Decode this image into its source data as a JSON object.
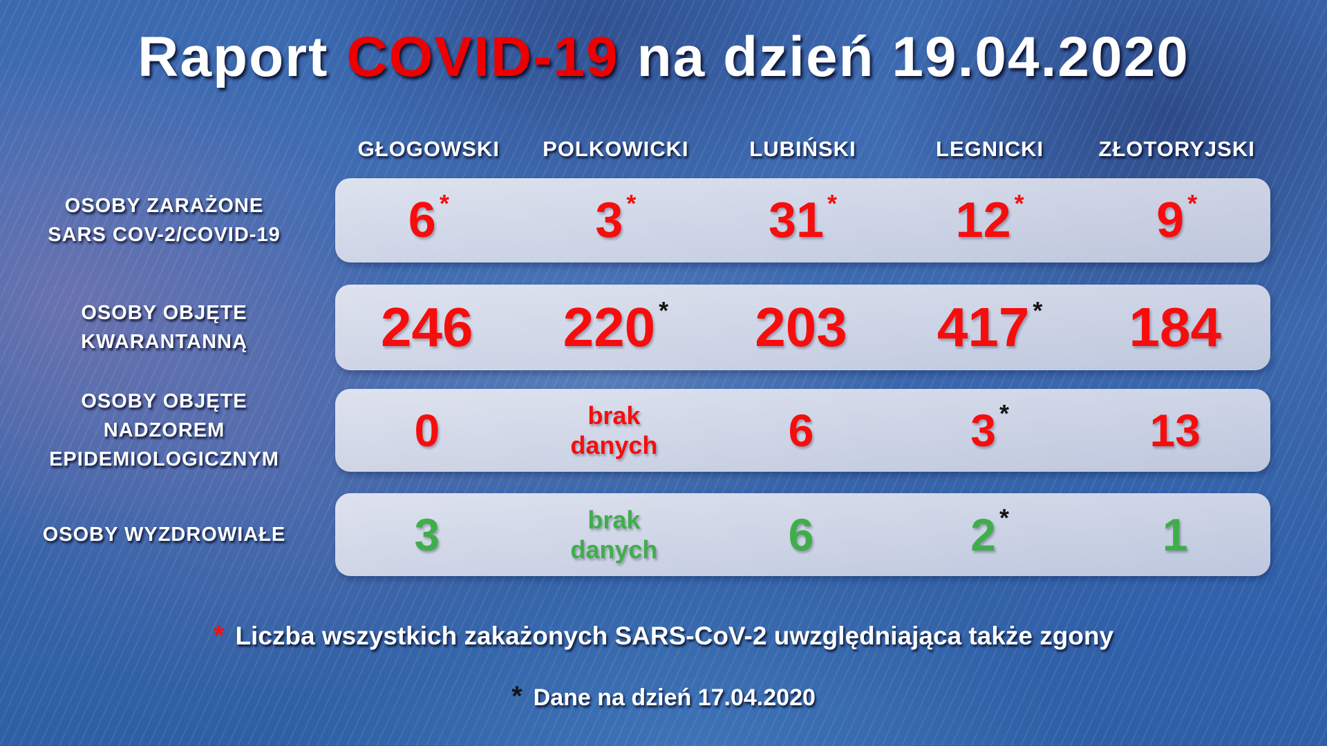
{
  "title": {
    "prefix": "Raport",
    "highlight": "COVID-19",
    "suffix": "na dzień 19.04.2020"
  },
  "columns": [
    "GŁOGOWSKI",
    "POLKOWICKI",
    "LUBIŃSKI",
    "LEGNICKI",
    "ZŁOTORYJSKI"
  ],
  "rows": [
    {
      "label": "OSOBY ZARAŻONE\nSARS COV-2/COVID-19",
      "cells": [
        {
          "value": "6",
          "asterisk": "*"
        },
        {
          "value": "3",
          "asterisk": "*"
        },
        {
          "value": "31",
          "asterisk": "*"
        },
        {
          "value": "12",
          "asterisk": "*"
        },
        {
          "value": "9",
          "asterisk": "*"
        }
      ]
    },
    {
      "label": "OSOBY OBJĘTE\nKWARANTANNĄ",
      "cells": [
        {
          "value": "246",
          "asterisk": ""
        },
        {
          "value": "220",
          "asterisk": "*"
        },
        {
          "value": "203",
          "asterisk": ""
        },
        {
          "value": "417",
          "asterisk": "*"
        },
        {
          "value": "184",
          "asterisk": ""
        }
      ]
    },
    {
      "label": "OSOBY OBJĘTE\nNADZOREM\nEPIDEMIOLOGICZNYM",
      "cells": [
        {
          "value": "0",
          "asterisk": ""
        },
        {
          "value": "brak\ndanych",
          "asterisk": ""
        },
        {
          "value": "6",
          "asterisk": ""
        },
        {
          "value": "3",
          "asterisk": "*"
        },
        {
          "value": "13",
          "asterisk": ""
        }
      ]
    },
    {
      "label": "OSOBY WYZDROWIAŁE",
      "cells": [
        {
          "value": "3",
          "asterisk": ""
        },
        {
          "value": "brak\ndanych",
          "asterisk": ""
        },
        {
          "value": "6",
          "asterisk": ""
        },
        {
          "value": "2",
          "asterisk": "*"
        },
        {
          "value": "1",
          "asterisk": ""
        }
      ]
    }
  ],
  "footnotes": [
    {
      "marker": "*",
      "text": "Liczba wszystkich zakażonych SARS-CoV-2 uwzględniająca także zgony"
    },
    {
      "marker": "*",
      "text": "Dane na dzień 17.04.2020"
    }
  ],
  "colors": {
    "number_red": "#f70d0d",
    "number_green": "#3fae4a",
    "asterisk_black": "#141414",
    "title_red": "#ee0000"
  },
  "chart_data": {
    "type": "table",
    "title": "Raport COVID-19 na dzień 19.04.2020",
    "columns": [
      "GŁOGOWSKI",
      "POLKOWICKI",
      "LUBIŃSKI",
      "LEGNICKI",
      "ZŁOTORYJSKI"
    ],
    "series": [
      {
        "name": "OSOBY ZARAŻONE SARS COV-2/COVID-19",
        "values": [
          6,
          3,
          31,
          12,
          9
        ],
        "flagged": [
          true,
          true,
          true,
          true,
          true
        ]
      },
      {
        "name": "OSOBY OBJĘTE KWARANTANNĄ",
        "values": [
          246,
          220,
          203,
          417,
          184
        ],
        "flagged": [
          false,
          true,
          false,
          true,
          false
        ]
      },
      {
        "name": "OSOBY OBJĘTE NADZOREM EPIDEMIOLOGICZNYM",
        "values": [
          0,
          "brak danych",
          6,
          3,
          13
        ],
        "flagged": [
          false,
          false,
          false,
          true,
          false
        ]
      },
      {
        "name": "OSOBY WYZDROWIAŁE",
        "values": [
          3,
          "brak danych",
          6,
          2,
          1
        ],
        "flagged": [
          false,
          false,
          false,
          true,
          false
        ]
      }
    ],
    "notes": [
      "* Liczba wszystkich zakażonych SARS-CoV-2 uwzględniająca także zgony",
      "* Dane na dzień 17.04.2020"
    ]
  }
}
